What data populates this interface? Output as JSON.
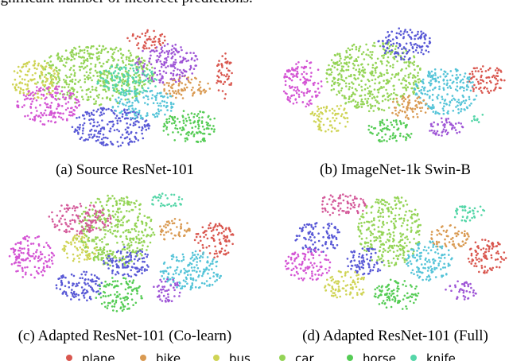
{
  "body_text": "significant number of incorrect predictions.",
  "panels": [
    {
      "caption": "(a) Source ResNet-101"
    },
    {
      "caption": "(b) ImageNet-1k Swin-B"
    },
    {
      "caption": "(c) Adapted ResNet-101 (Co-learn)"
    },
    {
      "caption": "(d) Adapted ResNet-101 (Full)"
    }
  ],
  "legend": [
    {
      "name": "plane",
      "color": "#d9574f"
    },
    {
      "name": "bike",
      "color": "#d99a52"
    },
    {
      "name": "bus",
      "color": "#cfd455"
    },
    {
      "name": "car",
      "color": "#94d456"
    },
    {
      "name": "horse",
      "color": "#55cc55"
    },
    {
      "name": "knife",
      "color": "#55d6a8"
    }
  ]
}
